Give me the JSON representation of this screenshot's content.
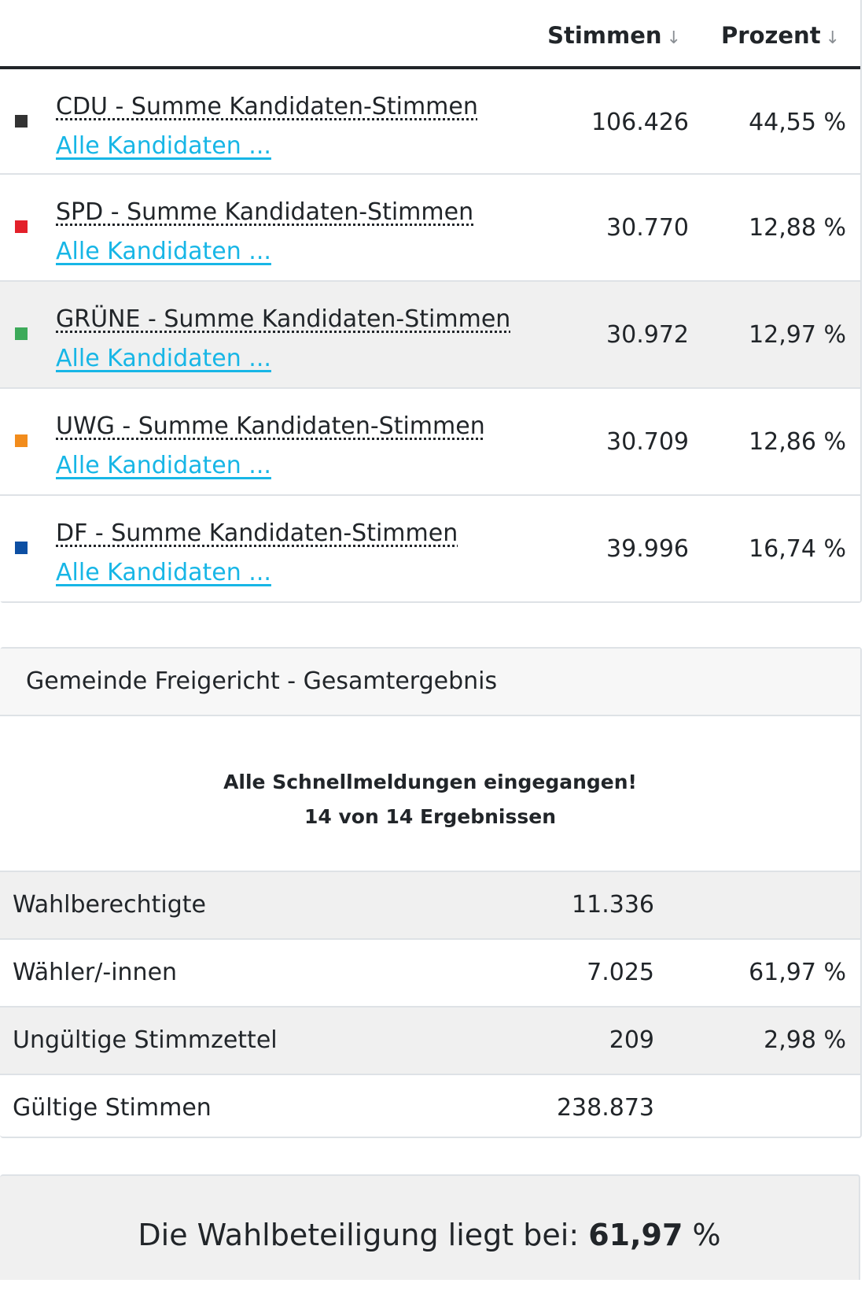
{
  "results_table": {
    "columns": {
      "stimmen": "Stimmen",
      "prozent": "Prozent",
      "sort_icon": "↓"
    },
    "rows": [
      {
        "name": "CDU - Summe Kandidaten-Stimmen",
        "link": "Alle Kandidaten ...",
        "votes": "106.426",
        "percent": "44,55 %",
        "color": "#333333"
      },
      {
        "name": "SPD - Summe Kandidaten-Stimmen",
        "link": "Alle Kandidaten ...",
        "votes": "30.770",
        "percent": "12,88 %",
        "color": "#e3202a"
      },
      {
        "name": "GRÜNE - Summe Kandidaten-Stimmen",
        "link": "Alle Kandidaten ...",
        "votes": "30.972",
        "percent": "12,97 %",
        "color": "#3daa5a"
      },
      {
        "name": "UWG - Summe Kandidaten-Stimmen",
        "link": "Alle Kandidaten ...",
        "votes": "30.709",
        "percent": "12,86 %",
        "color": "#f28c1c"
      },
      {
        "name": "DF - Summe Kandidaten-Stimmen",
        "link": "Alle Kandidaten ...",
        "votes": "39.996",
        "percent": "16,74 %",
        "color": "#0d4fa3"
      }
    ]
  },
  "overall": {
    "title": "Gemeinde Freigericht - Gesamtergebnis",
    "status_line1": "Alle Schnellmeldungen eingegangen!",
    "status_line2": "14 von 14 Ergebnissen",
    "stats": [
      {
        "label": "Wahlberechtigte",
        "value": "11.336",
        "percent": ""
      },
      {
        "label": "Wähler/-innen",
        "value": "7.025",
        "percent": "61,97 %"
      },
      {
        "label": "Ungültige Stimmzettel",
        "value": "209",
        "percent": "2,98 %"
      },
      {
        "label": "Gültige Stimmen",
        "value": "238.873",
        "percent": ""
      }
    ]
  },
  "turnout": {
    "prefix": "Die Wahlbeteiligung liegt bei: ",
    "value": "61,97",
    "suffix": " %"
  }
}
